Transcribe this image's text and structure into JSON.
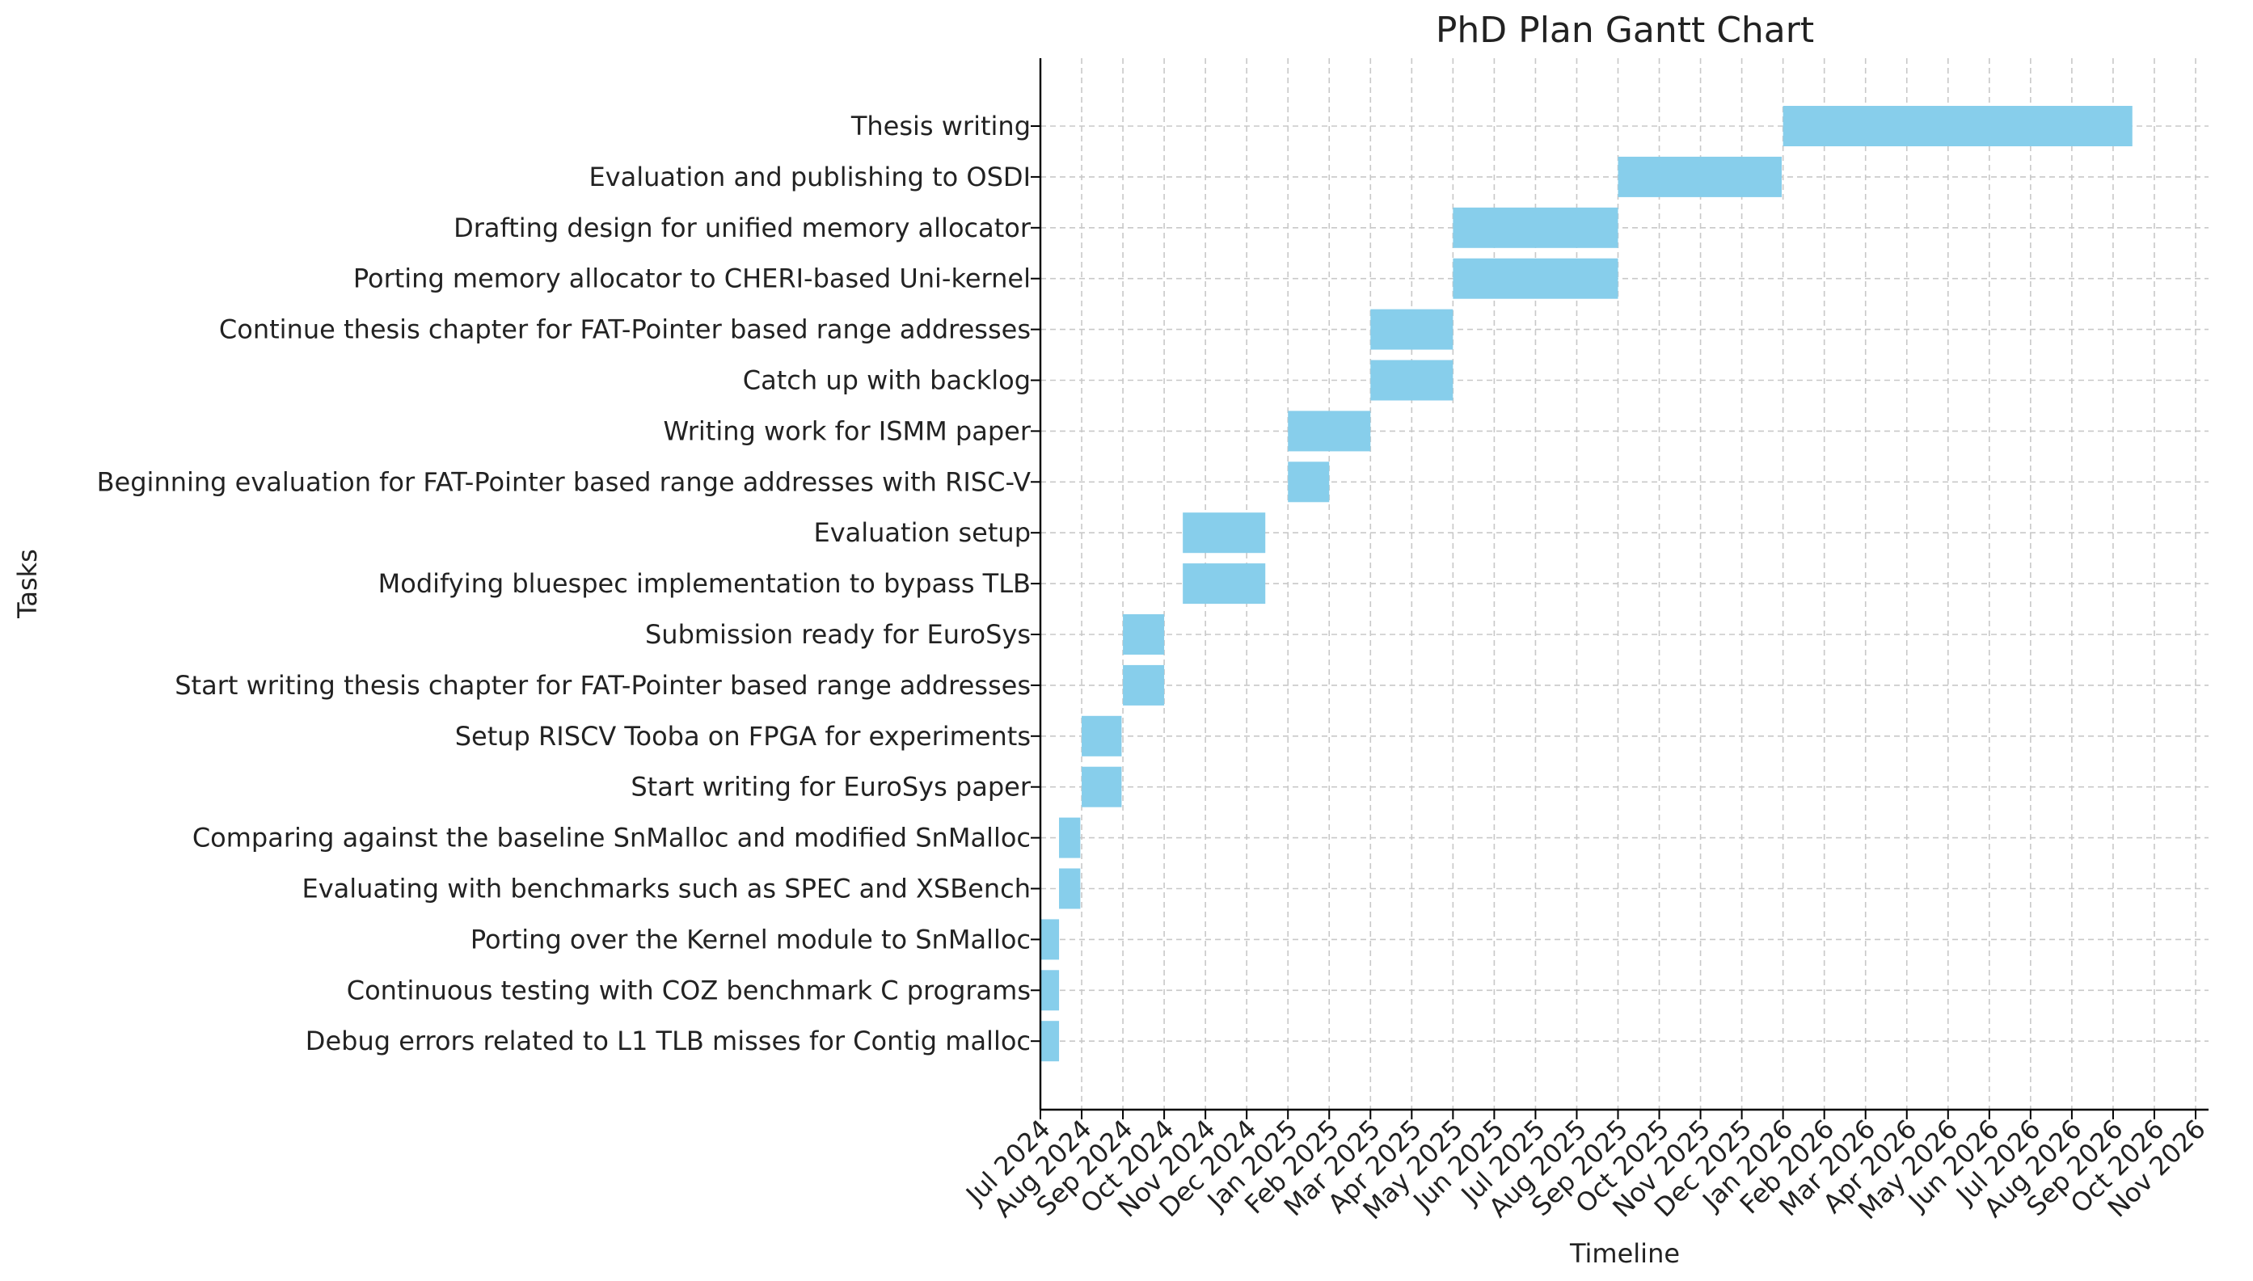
{
  "chart_data": {
    "type": "gantt",
    "title": "PhD Plan Gantt Chart",
    "xlabel": "Timeline",
    "ylabel": "Tasks",
    "bar_color": "#87CEEB",
    "grid": true,
    "x_ticks": [
      "Jul 2024",
      "Aug 2024",
      "Sep 2024",
      "Oct 2024",
      "Nov 2024",
      "Dec 2024",
      "Jan 2025",
      "Feb 2025",
      "Mar 2025",
      "Apr 2025",
      "May 2025",
      "Jun 2025",
      "Jul 2025",
      "Aug 2025",
      "Sep 2025",
      "Oct 2025",
      "Nov 2025",
      "Dec 2025",
      "Jan 2026",
      "Feb 2026",
      "Mar 2026",
      "Apr 2026",
      "May 2026",
      "Jun 2026",
      "Jul 2026",
      "Aug 2026",
      "Sep 2026",
      "Oct 2026",
      "Nov 2026"
    ],
    "tasks": [
      {
        "name": "Thesis writing",
        "start": "2026-01-01",
        "end": "2026-09-15"
      },
      {
        "name": "Evaluation and publishing to OSDI",
        "start": "2025-09-01",
        "end": "2025-12-31"
      },
      {
        "name": "Drafting design for unified memory allocator",
        "start": "2025-05-01",
        "end": "2025-09-01"
      },
      {
        "name": "Porting memory allocator to CHERI-based Uni-kernel",
        "start": "2025-05-01",
        "end": "2025-09-01"
      },
      {
        "name": "Continue thesis chapter for FAT-Pointer based range addresses",
        "start": "2025-03-01",
        "end": "2025-05-01"
      },
      {
        "name": "Catch up with backlog",
        "start": "2025-03-01",
        "end": "2025-05-01"
      },
      {
        "name": "Writing work for ISMM paper",
        "start": "2025-01-01",
        "end": "2025-03-01"
      },
      {
        "name": "Beginning evaluation for FAT-Pointer based range addresses with RISC-V",
        "start": "2025-01-01",
        "end": "2025-02-01"
      },
      {
        "name": "Evaluation setup",
        "start": "2024-10-15",
        "end": "2024-12-15"
      },
      {
        "name": "Modifying bluespec implementation to bypass TLB",
        "start": "2024-10-15",
        "end": "2024-12-15"
      },
      {
        "name": "Submission ready for EuroSys",
        "start": "2024-09-01",
        "end": "2024-10-01"
      },
      {
        "name": "Start writing thesis chapter for FAT-Pointer based range addresses",
        "start": "2024-09-01",
        "end": "2024-10-01"
      },
      {
        "name": "Setup RISCV Tooba on FPGA for experiments",
        "start": "2024-08-01",
        "end": "2024-08-31"
      },
      {
        "name": "Start writing for EuroSys paper",
        "start": "2024-08-01",
        "end": "2024-08-31"
      },
      {
        "name": "Comparing against the baseline SnMalloc and modified SnMalloc",
        "start": "2024-07-15",
        "end": "2024-07-31"
      },
      {
        "name": "Evaluating with benchmarks such as SPEC and XSBench",
        "start": "2024-07-15",
        "end": "2024-07-31"
      },
      {
        "name": "Porting over the Kernel module to SnMalloc",
        "start": "2024-07-01",
        "end": "2024-07-15"
      },
      {
        "name": "Continuous testing with COZ benchmark C programs",
        "start": "2024-07-01",
        "end": "2024-07-15"
      },
      {
        "name": "Debug errors related to L1 TLB misses for Contig malloc",
        "start": "2024-07-01",
        "end": "2024-07-15"
      }
    ]
  }
}
